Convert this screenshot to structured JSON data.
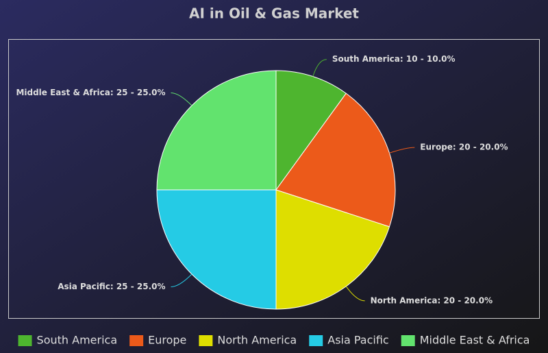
{
  "chart_data": {
    "type": "pie",
    "title": "AI in Oil & Gas Market",
    "categories": [
      "South America",
      "Europe",
      "North America",
      "Asia Pacific",
      "Middle East & Africa"
    ],
    "values": [
      10,
      20,
      20,
      25,
      25
    ],
    "value_labels": [
      "South America: 10 - 10.0%",
      "Europe: 20 - 20.0%",
      "North America: 20 - 20.0%",
      "Asia Pacific: 25 - 25.0%",
      "Middle East & Africa: 25 - 25.0%"
    ],
    "colors": [
      "#4eb52f",
      "#ec5a1a",
      "#dede00",
      "#25cbe5",
      "#62e36e"
    ],
    "legend": "bottom"
  }
}
